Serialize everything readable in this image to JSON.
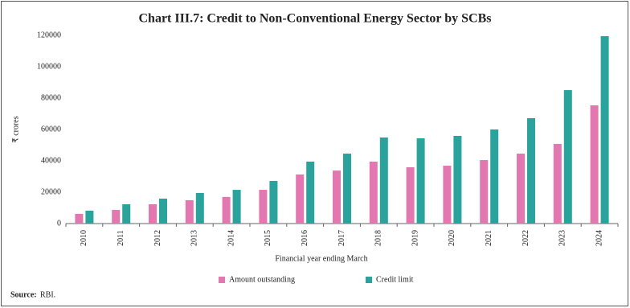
{
  "chart_data": {
    "type": "bar",
    "title": "Chart III.7: Credit to Non-Conventional Energy Sector by SCBs",
    "x_label": "Financial year ending March",
    "y_label": "₹ crores",
    "categories": [
      "2010",
      "2011",
      "2012",
      "2013",
      "2014",
      "2015",
      "2016",
      "2017",
      "2018",
      "2019",
      "2020",
      "2021",
      "2022",
      "2023",
      "2024"
    ],
    "series": [
      {
        "name": "Amount outstanding",
        "color": "#e377b0",
        "values": [
          6200,
          8700,
          12300,
          14900,
          17000,
          21500,
          31300,
          33800,
          39500,
          35900,
          36900,
          40500,
          44600,
          50800,
          75400
        ]
      },
      {
        "name": "Credit limit",
        "color": "#2aa39d",
        "values": [
          8200,
          12300,
          15900,
          19500,
          21500,
          27200,
          39500,
          44600,
          54900,
          54400,
          55900,
          60000,
          67200,
          85100,
          119500
        ]
      }
    ],
    "ylim": [
      0,
      120000
    ],
    "yticks": [
      0,
      20000,
      40000,
      60000,
      80000,
      100000,
      120000
    ],
    "grid": false,
    "legend": "bottom"
  },
  "source": {
    "label": "Source:",
    "text": "RBI."
  }
}
